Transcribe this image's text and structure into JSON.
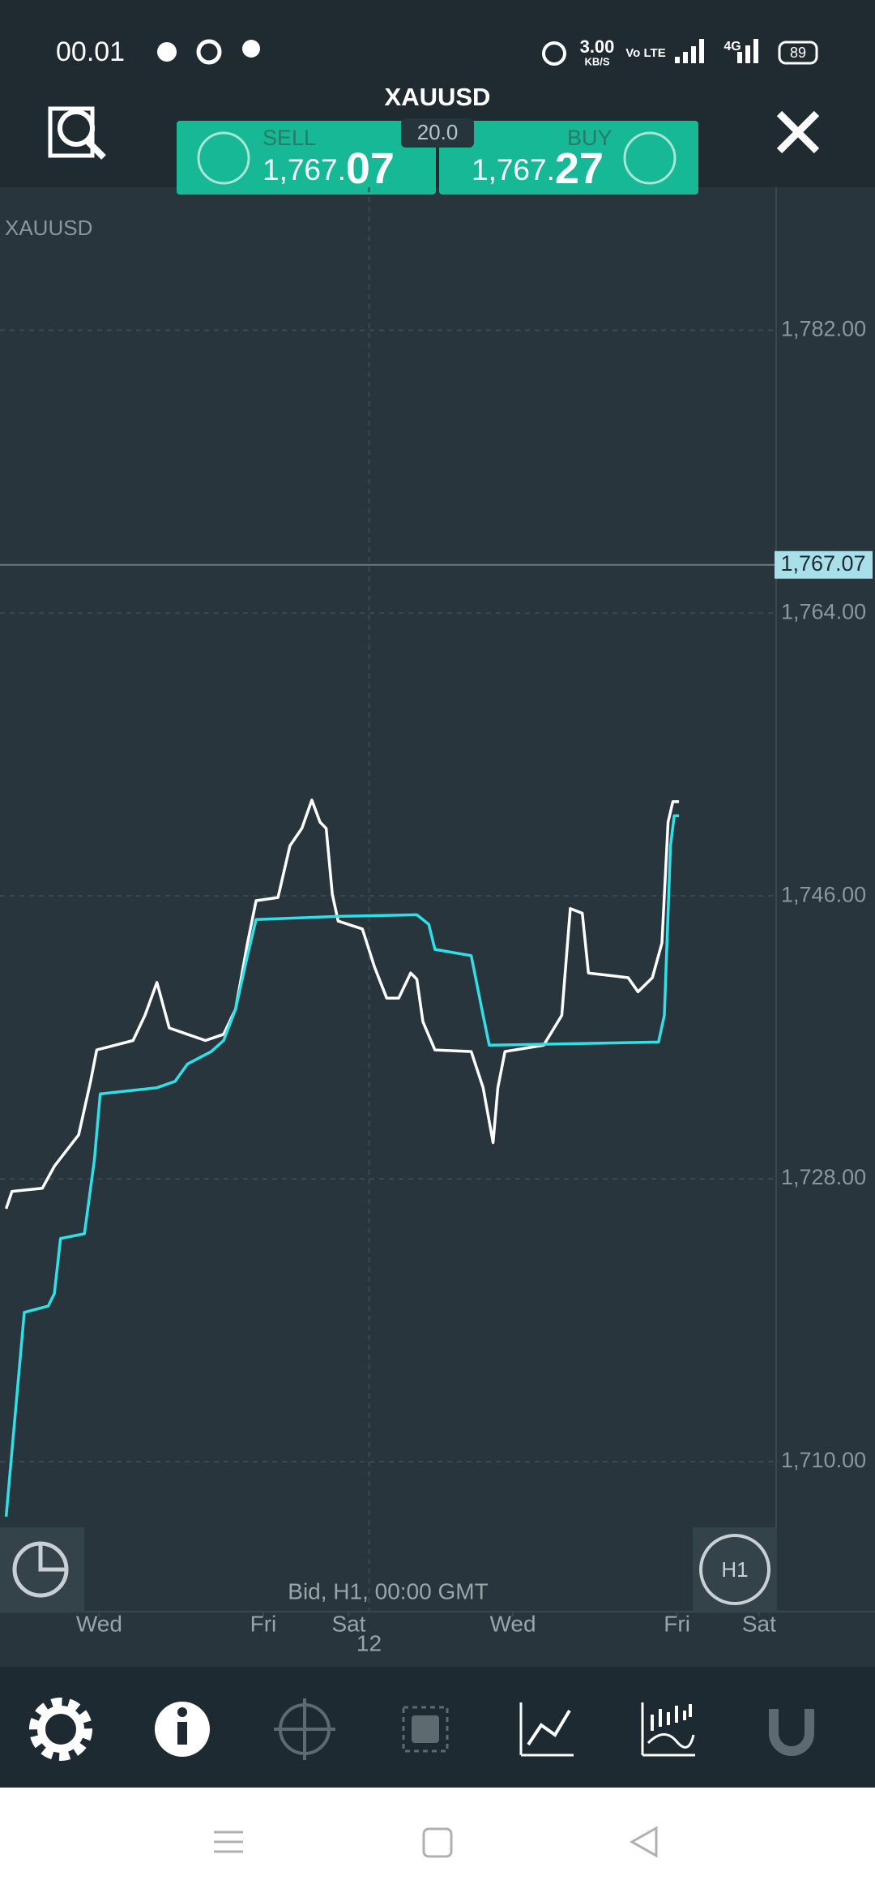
{
  "status_bar": {
    "time": "00.01",
    "speed": "3.00",
    "speed_unit": "KB/S",
    "volte": "Vo LTE",
    "network": "4G",
    "battery": "89"
  },
  "header": {
    "symbol": "XAUUSD",
    "sell_label": "SELL",
    "sell_price_main": "1,767.",
    "sell_price_big": "07",
    "spread": "20.0",
    "buy_label": "BUY",
    "buy_price_main": "1,767.",
    "buy_price_big": "27"
  },
  "chart_data": {
    "type": "line",
    "title": "XAUUSD",
    "footer": "Bid, H1, 00:00 GMT",
    "interval": "H1",
    "date_label": "12",
    "xlim": [
      0,
      227
    ],
    "xticks": [
      {
        "value": 29,
        "label": "Wed"
      },
      {
        "value": 77,
        "label": "Fri"
      },
      {
        "value": 102,
        "label": "Sat"
      },
      {
        "value": 150,
        "label": "Wed"
      },
      {
        "value": 198,
        "label": "Fri"
      },
      {
        "value": 222,
        "label": "Sat"
      }
    ],
    "ylim": [
      1700.3,
      1791.1
    ],
    "yticks": [
      {
        "value": 1710,
        "label": "1,710.00"
      },
      {
        "value": 1728,
        "label": "1,728.00"
      },
      {
        "value": 1746,
        "label": "1,746.00"
      },
      {
        "value": 1764,
        "label": "1,764.00"
      },
      {
        "value": 1782,
        "label": "1,782.00"
      }
    ],
    "current_price": {
      "value": 1767.07,
      "label": "1,767.07"
    },
    "grid": true,
    "series": [
      {
        "color": "#ffffff",
        "x": [
          1.8,
          3.5,
          12.4,
          15.9,
          23.0,
          26.5,
          28.3,
          33.6,
          38.9,
          42.4,
          45.9,
          49.5,
          54.8,
          60.1,
          65.4,
          68.9,
          72.4,
          74.9,
          81.3,
          84.8,
          88.3,
          91.2,
          93.6,
          95.4,
          97.2,
          98.9,
          106.0,
          109.5,
          113.1,
          116.6,
          120.1,
          121.9,
          123.7,
          127.2,
          137.8,
          141.3,
          144.2,
          145.6,
          147.7,
          159.0,
          164.3,
          166.8,
          170.3,
          172.1,
          183.7,
          186.6,
          190.8,
          193.6,
          195.4,
          196.8,
          198.6
        ],
        "values": [
          1726.1,
          1727.2,
          1727.4,
          1728.8,
          1730.8,
          1734.2,
          1736.2,
          1736.5,
          1736.8,
          1738.4,
          1740.5,
          1737.6,
          1737.2,
          1736.8,
          1737.2,
          1738.8,
          1743.0,
          1745.7,
          1745.9,
          1749.2,
          1750.3,
          1752.1,
          1750.7,
          1750.3,
          1746.1,
          1744.4,
          1743.9,
          1741.5,
          1739.5,
          1739.5,
          1741.1,
          1740.7,
          1738.0,
          1736.2,
          1736.1,
          1733.8,
          1730.3,
          1733.8,
          1736.1,
          1736.5,
          1738.4,
          1745.2,
          1744.9,
          1741.1,
          1740.8,
          1739.9,
          1740.8,
          1743.0,
          1750.7,
          1752.0,
          1752.0
        ]
      },
      {
        "color": "#2fe0e8",
        "x": [
          1.8,
          3.5,
          7.1,
          14.1,
          15.9,
          17.7,
          24.7,
          27.6,
          29.3,
          45.9,
          51.2,
          54.8,
          61.8,
          65.4,
          68.9,
          72.4,
          74.9,
          98.9,
          121.9,
          125.4,
          127.2,
          137.8,
          141.3,
          143.1,
          192.6,
          194.3,
          196.1,
          197.2,
          198.6
        ],
        "values": [
          1706.5,
          1710.7,
          1719.5,
          1719.9,
          1720.7,
          1724.2,
          1724.5,
          1729.2,
          1733.4,
          1733.8,
          1734.2,
          1735.3,
          1736.1,
          1736.8,
          1738.8,
          1742.2,
          1744.5,
          1744.7,
          1744.8,
          1744.2,
          1742.6,
          1742.2,
          1738.4,
          1736.5,
          1736.7,
          1738.4,
          1749.2,
          1751.1,
          1751.1
        ]
      }
    ]
  }
}
